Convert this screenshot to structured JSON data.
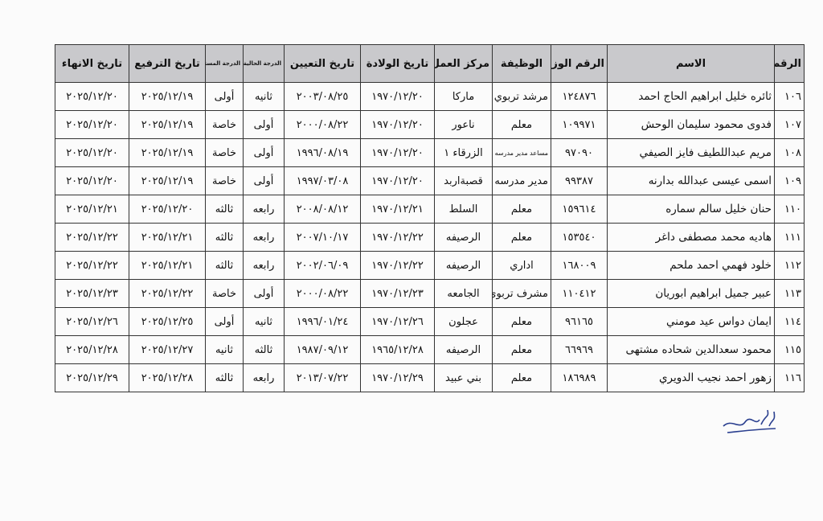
{
  "table": {
    "headers": [
      "الرقم",
      "الاسم",
      "الرقم الوزاري",
      "الوظيفة",
      "مركز العمل",
      "تاريخ الولادة",
      "تاريخ التعيين",
      "الدرجة الحالية",
      "الدرجة المستحقة",
      "تاريخ الترفيع",
      "تاريخ الانهاء"
    ],
    "rows": [
      [
        "١٠٦",
        "ثائره خليل ابراهيم الحاج احمد",
        "١٢٤٨٧٦",
        "مرشد تربوي",
        "ماركا",
        "١٩٧٠/١٢/٢٠",
        "٢٠٠٣/٠٨/٢٥",
        "ثانيه",
        "أولى",
        "٢٠٢٥/١٢/١٩",
        "٢٠٢٥/١٢/٢٠"
      ],
      [
        "١٠٧",
        "فدوى محمود سليمان الوحش",
        "١٠٩٩٧١",
        "معلم",
        "ناعور",
        "١٩٧٠/١٢/٢٠",
        "٢٠٠٠/٠٨/٢٢",
        "أولى",
        "خاصة",
        "٢٠٢٥/١٢/١٩",
        "٢٠٢٥/١٢/٢٠"
      ],
      [
        "١٠٨",
        "مريم عبداللطيف فايز الصيفي",
        "٩٧٠٩٠",
        "مساعد مدير مدرسه",
        "الزرقاء ١",
        "١٩٧٠/١٢/٢٠",
        "١٩٩٦/٠٨/١٩",
        "أولى",
        "خاصة",
        "٢٠٢٥/١٢/١٩",
        "٢٠٢٥/١٢/٢٠"
      ],
      [
        "١٠٩",
        "اسمى عيسى عبدالله بدارنه",
        "٩٩٣٨٧",
        "مدير مدرسه",
        "قصبةاربد",
        "١٩٧٠/١٢/٢٠",
        "١٩٩٧/٠٣/٠٨",
        "أولى",
        "خاصة",
        "٢٠٢٥/١٢/١٩",
        "٢٠٢٥/١٢/٢٠"
      ],
      [
        "١١٠",
        "حنان خليل سالم سماره",
        "١٥٩٦١٤",
        "معلم",
        "السلط",
        "١٩٧٠/١٢/٢١",
        "٢٠٠٨/٠٨/١٢",
        "رابعه",
        "ثالثه",
        "٢٠٢٥/١٢/٢٠",
        "٢٠٢٥/١٢/٢١"
      ],
      [
        "١١١",
        "هاديه محمد مصطفى داغر",
        "١٥٣٥٤٠",
        "معلم",
        "الرصيفه",
        "١٩٧٠/١٢/٢٢",
        "٢٠٠٧/١٠/١٧",
        "رابعه",
        "ثالثه",
        "٢٠٢٥/١٢/٢١",
        "٢٠٢٥/١٢/٢٢"
      ],
      [
        "١١٢",
        "خلود فهمي احمد ملحم",
        "١٦٨٠٠٩",
        "اداري",
        "الرصيفه",
        "١٩٧٠/١٢/٢٢",
        "٢٠٠٢/٠٦/٠٩",
        "رابعه",
        "ثالثه",
        "٢٠٢٥/١٢/٢١",
        "٢٠٢٥/١٢/٢٢"
      ],
      [
        "١١٣",
        "عبير جميل ابراهيم ابوريان",
        "١١٠٤١٢",
        "مشرف تربوي",
        "الجامعه",
        "١٩٧٠/١٢/٢٣",
        "٢٠٠٠/٠٨/٢٢",
        "أولى",
        "خاصة",
        "٢٠٢٥/١٢/٢٢",
        "٢٠٢٥/١٢/٢٣"
      ],
      [
        "١١٤",
        "ايمان دواس عيد مومني",
        "٩٦١٦٥",
        "معلم",
        "عجلون",
        "١٩٧٠/١٢/٢٦",
        "١٩٩٦/٠١/٢٤",
        "ثانيه",
        "أولى",
        "٢٠٢٥/١٢/٢٥",
        "٢٠٢٥/١٢/٢٦"
      ],
      [
        "١١٥",
        "محمود سعدالدين شحاده مشتهى",
        "٦٦٩٦٩",
        "معلم",
        "الرصيفه",
        "١٩٦٥/١٢/٢٨",
        "١٩٨٧/٠٩/١٢",
        "ثالثه",
        "ثانيه",
        "٢٠٢٥/١٢/٢٧",
        "٢٠٢٥/١٢/٢٨"
      ],
      [
        "١١٦",
        "زهور احمد نجيب الدويري",
        "١٨٦٩٨٩",
        "معلم",
        "بني عبيد",
        "١٩٧٠/١٢/٢٩",
        "٢٠١٣/٠٧/٢٢",
        "رابعه",
        "ثالثه",
        "٢٠٢٥/١٢/٢٨",
        "٢٠٢٥/١٢/٢٩"
      ]
    ]
  },
  "colors": {
    "header_bg": "#c9c9cc",
    "border": "#333333",
    "signature_ink": "#2a3f8f"
  }
}
